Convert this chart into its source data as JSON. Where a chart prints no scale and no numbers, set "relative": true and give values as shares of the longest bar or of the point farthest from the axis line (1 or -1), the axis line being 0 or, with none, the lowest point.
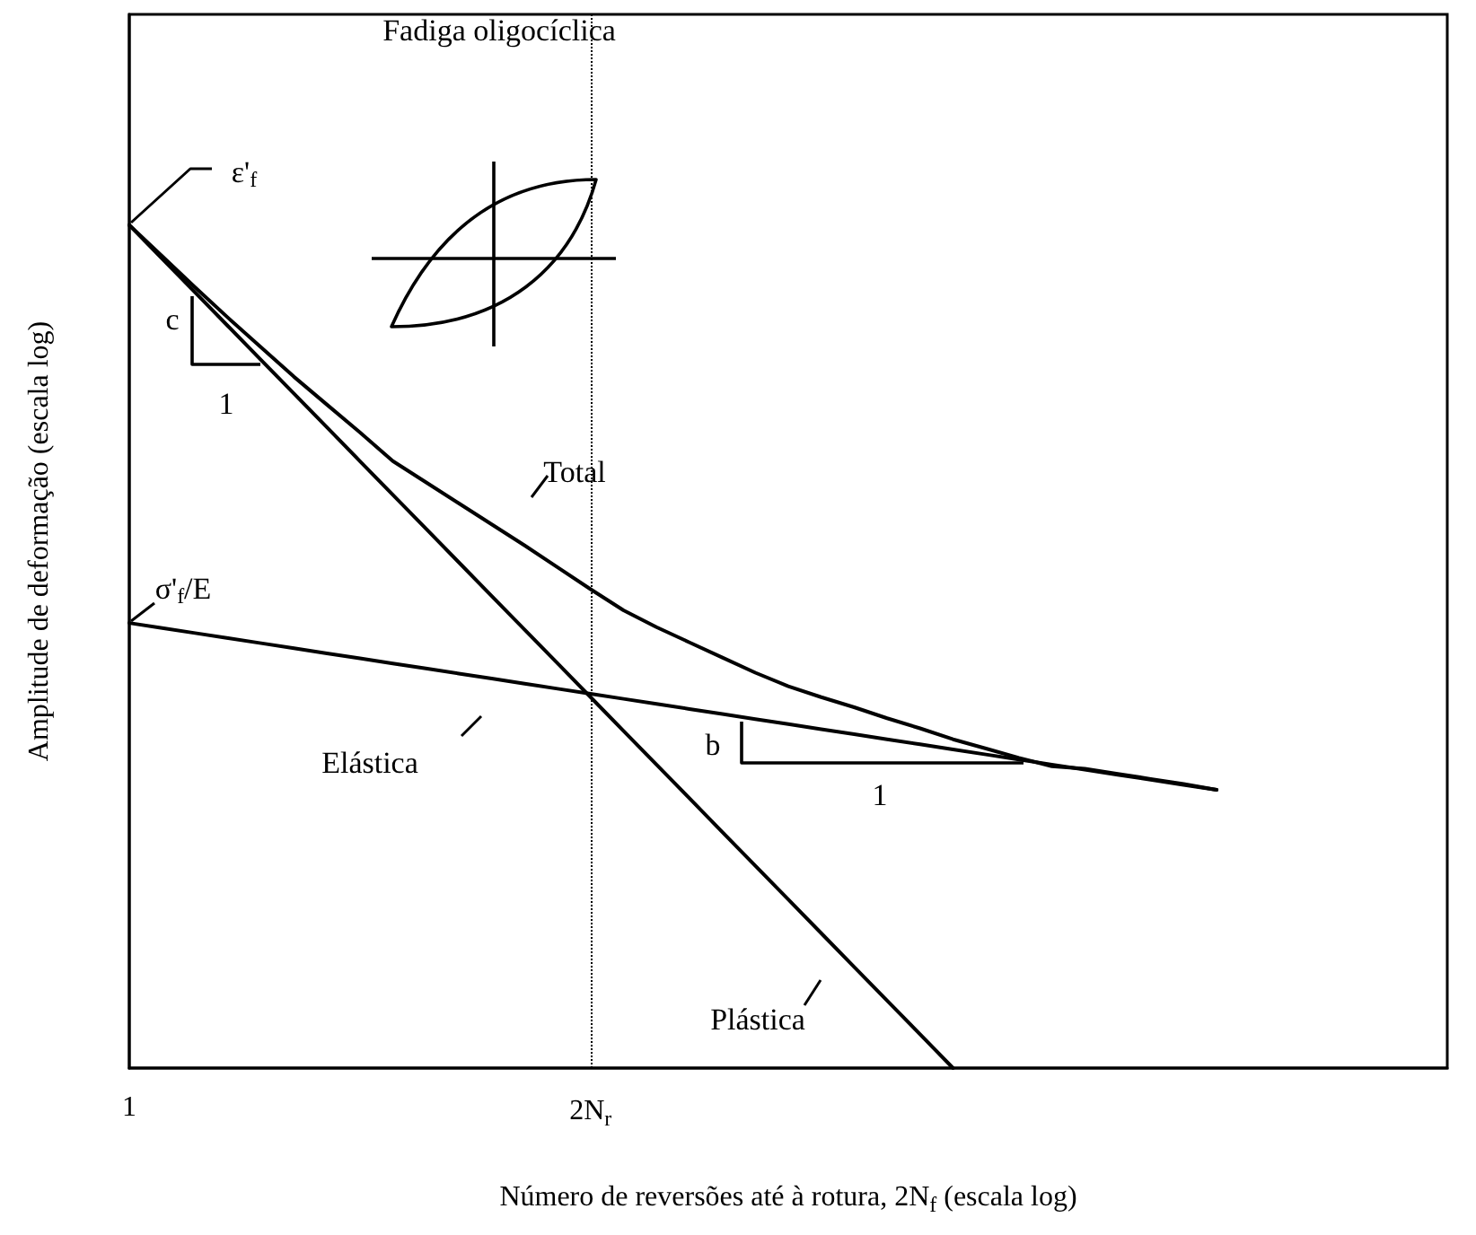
{
  "chart_data": {
    "type": "line",
    "relative": true,
    "xlabel": "Número de reversões até à rotura, 2N$_{f}$ (escala log)",
    "ylabel": "Amplitude de deformação (escala log)",
    "categories": [
      "1",
      null,
      null,
      null,
      null,
      null,
      null,
      null,
      null,
      null,
      null,
      null,
      null,
      null,
      "2N$_{r}$",
      null,
      null,
      null,
      null,
      null,
      null,
      null,
      null,
      null,
      null,
      null,
      null,
      null,
      null,
      null,
      null,
      null,
      null,
      null,
      null,
      null,
      null,
      null,
      null,
      null,
      null
    ],
    "series": [
      {
        "color": "#000000",
        "values": [
          1,
          0.963,
          0.926,
          0.89,
          0.855,
          0.82,
          0.787,
          0.754,
          0.72,
          0.695,
          0.67,
          0.645,
          0.62,
          0.594,
          0.568,
          0.543,
          0.523,
          0.505,
          0.487,
          0.469,
          0.453,
          0.44,
          0.428,
          0.415,
          0.403,
          0.39,
          0.379,
          0.368,
          0.358,
          0.355,
          0.349,
          0.343,
          0.337,
          0.33,
          null,
          null,
          null,
          null,
          null,
          null,
          null
        ]
      },
      {
        "color": "#000000",
        "values": [
          1,
          0.96,
          0.92,
          0.88,
          0.84,
          0.8,
          0.76,
          0.72,
          0.68,
          0.64,
          0.6,
          0.56,
          0.52,
          0.48,
          0.44,
          0.4,
          0.36,
          0.32,
          0.28,
          0.24,
          0.2,
          0.16,
          0.12,
          0.08,
          0.04,
          0,
          null,
          null,
          null,
          null,
          null,
          null,
          null,
          null,
          null,
          null,
          null,
          null,
          null,
          null,
          null
        ]
      },
      {
        "color": "#000000",
        "values": [
          0.528,
          0.522,
          0.516,
          0.51,
          0.504,
          0.498,
          0.492,
          0.486,
          0.48,
          0.474,
          0.468,
          0.462,
          0.456,
          0.45,
          0.444,
          0.438,
          0.432,
          0.426,
          0.42,
          0.414,
          0.408,
          0.402,
          0.396,
          0.39,
          0.384,
          0.378,
          0.372,
          0.366,
          0.36,
          0.354,
          0.348,
          0.342,
          0.336,
          0.33,
          null,
          null,
          null,
          null,
          null,
          null,
          null
        ]
      }
    ],
    "ref_lines": [
      {
        "axis": "x",
        "value": "2N$_{r}$",
        "color": "#000000",
        "line_style": "dotted"
      }
    ],
    "annotations": [
      "Fadiga oligocíclica",
      "Total",
      "Elástica",
      "Plástica",
      "ε'$_{f}$",
      "σ'$_{f}$/E",
      "c",
      "1",
      "b",
      "1"
    ],
    "marker": "none",
    "line_style": "solid",
    "grid": false
  }
}
